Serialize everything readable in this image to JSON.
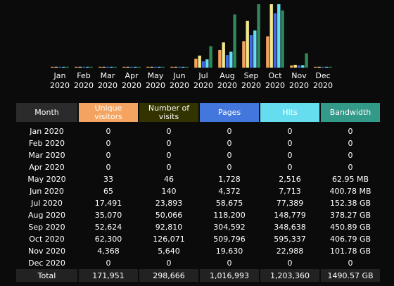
{
  "colors": {
    "unique_visitors": "#f4a460",
    "visits": "#f0e68c",
    "pages": "#4169e1",
    "hits": "#66ddee",
    "bandwidth": "#2e8b57",
    "header_month_bg": "#2b2b2b",
    "header_visits_bg": "#333300",
    "header_uv_bg": "#f4a460",
    "header_pages_bg": "#4477dd",
    "header_hits_bg": "#66ddee",
    "header_bw_bg": "#339988"
  },
  "chart_data": {
    "type": "bar",
    "categories": [
      [
        "Jan",
        "2020"
      ],
      [
        "Feb",
        "2020"
      ],
      [
        "Mar",
        "2020"
      ],
      [
        "Apr",
        "2020"
      ],
      [
        "May",
        "2020"
      ],
      [
        "Jun",
        "2020"
      ],
      [
        "Jul",
        "2020"
      ],
      [
        "Aug",
        "2020"
      ],
      [
        "Sep",
        "2020"
      ],
      [
        "Oct",
        "2020"
      ],
      [
        "Nov",
        "2020"
      ],
      [
        "Dec",
        "2020"
      ]
    ],
    "series": [
      {
        "key": "unique_visitors",
        "values": [
          0,
          0,
          0,
          0,
          33,
          65,
          17491,
          35070,
          52624,
          62300,
          4368,
          0
        ]
      },
      {
        "key": "visits",
        "values": [
          0,
          0,
          0,
          0,
          46,
          140,
          23893,
          50066,
          92810,
          126071,
          5640,
          0
        ]
      },
      {
        "key": "pages",
        "values": [
          0,
          0,
          0,
          0,
          1728,
          4372,
          58675,
          118200,
          304592,
          509796,
          19630,
          0
        ]
      },
      {
        "key": "hits",
        "values": [
          0,
          0,
          0,
          0,
          2516,
          7713,
          77389,
          148779,
          348638,
          595337,
          22988,
          0
        ]
      },
      {
        "key": "bandwidth_gb",
        "values": [
          0,
          0,
          0,
          0,
          0.0615,
          0.391,
          152.38,
          378.27,
          450.89,
          406.79,
          101.78,
          0
        ]
      }
    ]
  },
  "table": {
    "headers": {
      "month": "Month",
      "unique_visitors": "Unique visitors",
      "visits": "Number of visits",
      "pages": "Pages",
      "hits": "Hits",
      "bandwidth": "Bandwidth"
    },
    "rows": [
      {
        "month": "Jan 2020",
        "uv": "0",
        "visits": "0",
        "pages": "0",
        "hits": "0",
        "bw": "0"
      },
      {
        "month": "Feb 2020",
        "uv": "0",
        "visits": "0",
        "pages": "0",
        "hits": "0",
        "bw": "0"
      },
      {
        "month": "Mar 2020",
        "uv": "0",
        "visits": "0",
        "pages": "0",
        "hits": "0",
        "bw": "0"
      },
      {
        "month": "Apr 2020",
        "uv": "0",
        "visits": "0",
        "pages": "0",
        "hits": "0",
        "bw": "0"
      },
      {
        "month": "May 2020",
        "uv": "33",
        "visits": "46",
        "pages": "1,728",
        "hits": "2,516",
        "bw": "62.95 MB"
      },
      {
        "month": "Jun 2020",
        "uv": "65",
        "visits": "140",
        "pages": "4,372",
        "hits": "7,713",
        "bw": "400.78 MB"
      },
      {
        "month": "Jul 2020",
        "uv": "17,491",
        "visits": "23,893",
        "pages": "58,675",
        "hits": "77,389",
        "bw": "152.38 GB"
      },
      {
        "month": "Aug 2020",
        "uv": "35,070",
        "visits": "50,066",
        "pages": "118,200",
        "hits": "148,779",
        "bw": "378.27 GB"
      },
      {
        "month": "Sep 2020",
        "uv": "52,624",
        "visits": "92,810",
        "pages": "304,592",
        "hits": "348,638",
        "bw": "450.89 GB"
      },
      {
        "month": "Oct 2020",
        "uv": "62,300",
        "visits": "126,071",
        "pages": "509,796",
        "hits": "595,337",
        "bw": "406.79 GB"
      },
      {
        "month": "Nov 2020",
        "uv": "4,368",
        "visits": "5,640",
        "pages": "19,630",
        "hits": "22,988",
        "bw": "101.78 GB"
      },
      {
        "month": "Dec 2020",
        "uv": "0",
        "visits": "0",
        "pages": "0",
        "hits": "0",
        "bw": "0"
      }
    ],
    "total": {
      "label": "Total",
      "uv": "171,951",
      "visits": "298,666",
      "pages": "1,016,993",
      "hits": "1,203,360",
      "bw": "1490.57 GB"
    }
  }
}
